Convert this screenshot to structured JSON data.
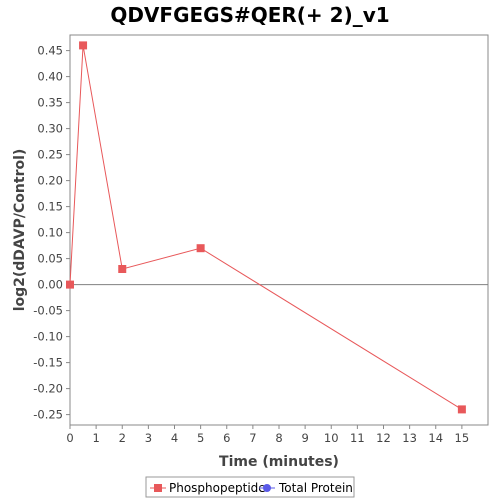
{
  "chart_data": {
    "type": "line",
    "title": "QDVFGEGS#QER(+ 2)_v1",
    "xlabel": "Time (minutes)",
    "ylabel": "log2(dDAVP/Control)",
    "xlim": [
      0,
      16
    ],
    "ylim": [
      -0.27,
      0.48
    ],
    "xticks": [
      0,
      1,
      2,
      3,
      4,
      5,
      6,
      7,
      8,
      9,
      10,
      11,
      12,
      13,
      14,
      15
    ],
    "yticks": [
      -0.25,
      -0.2,
      -0.15,
      -0.1,
      -0.05,
      0.0,
      0.05,
      0.1,
      0.15,
      0.2,
      0.25,
      0.3,
      0.35,
      0.4,
      0.45
    ],
    "ytick_labels": [
      "-0.25",
      "-0.20",
      "-0.15",
      "-0.10",
      "-0.05",
      "0.00",
      "0.05",
      "0.10",
      "0.15",
      "0.20",
      "0.25",
      "0.30",
      "0.35",
      "0.40",
      "0.45"
    ],
    "zero_line": true,
    "grid": false,
    "legend_position": "bottom",
    "series": [
      {
        "name": "Phosphopeptide",
        "color": "#e8585a",
        "marker": "square",
        "x": [
          0,
          0.5,
          2,
          5,
          15
        ],
        "y": [
          0.0,
          0.46,
          0.03,
          0.07,
          -0.24
        ]
      },
      {
        "name": "Total Protein",
        "color": "#5a5ae8",
        "marker": "circle",
        "x": [],
        "y": []
      }
    ]
  }
}
